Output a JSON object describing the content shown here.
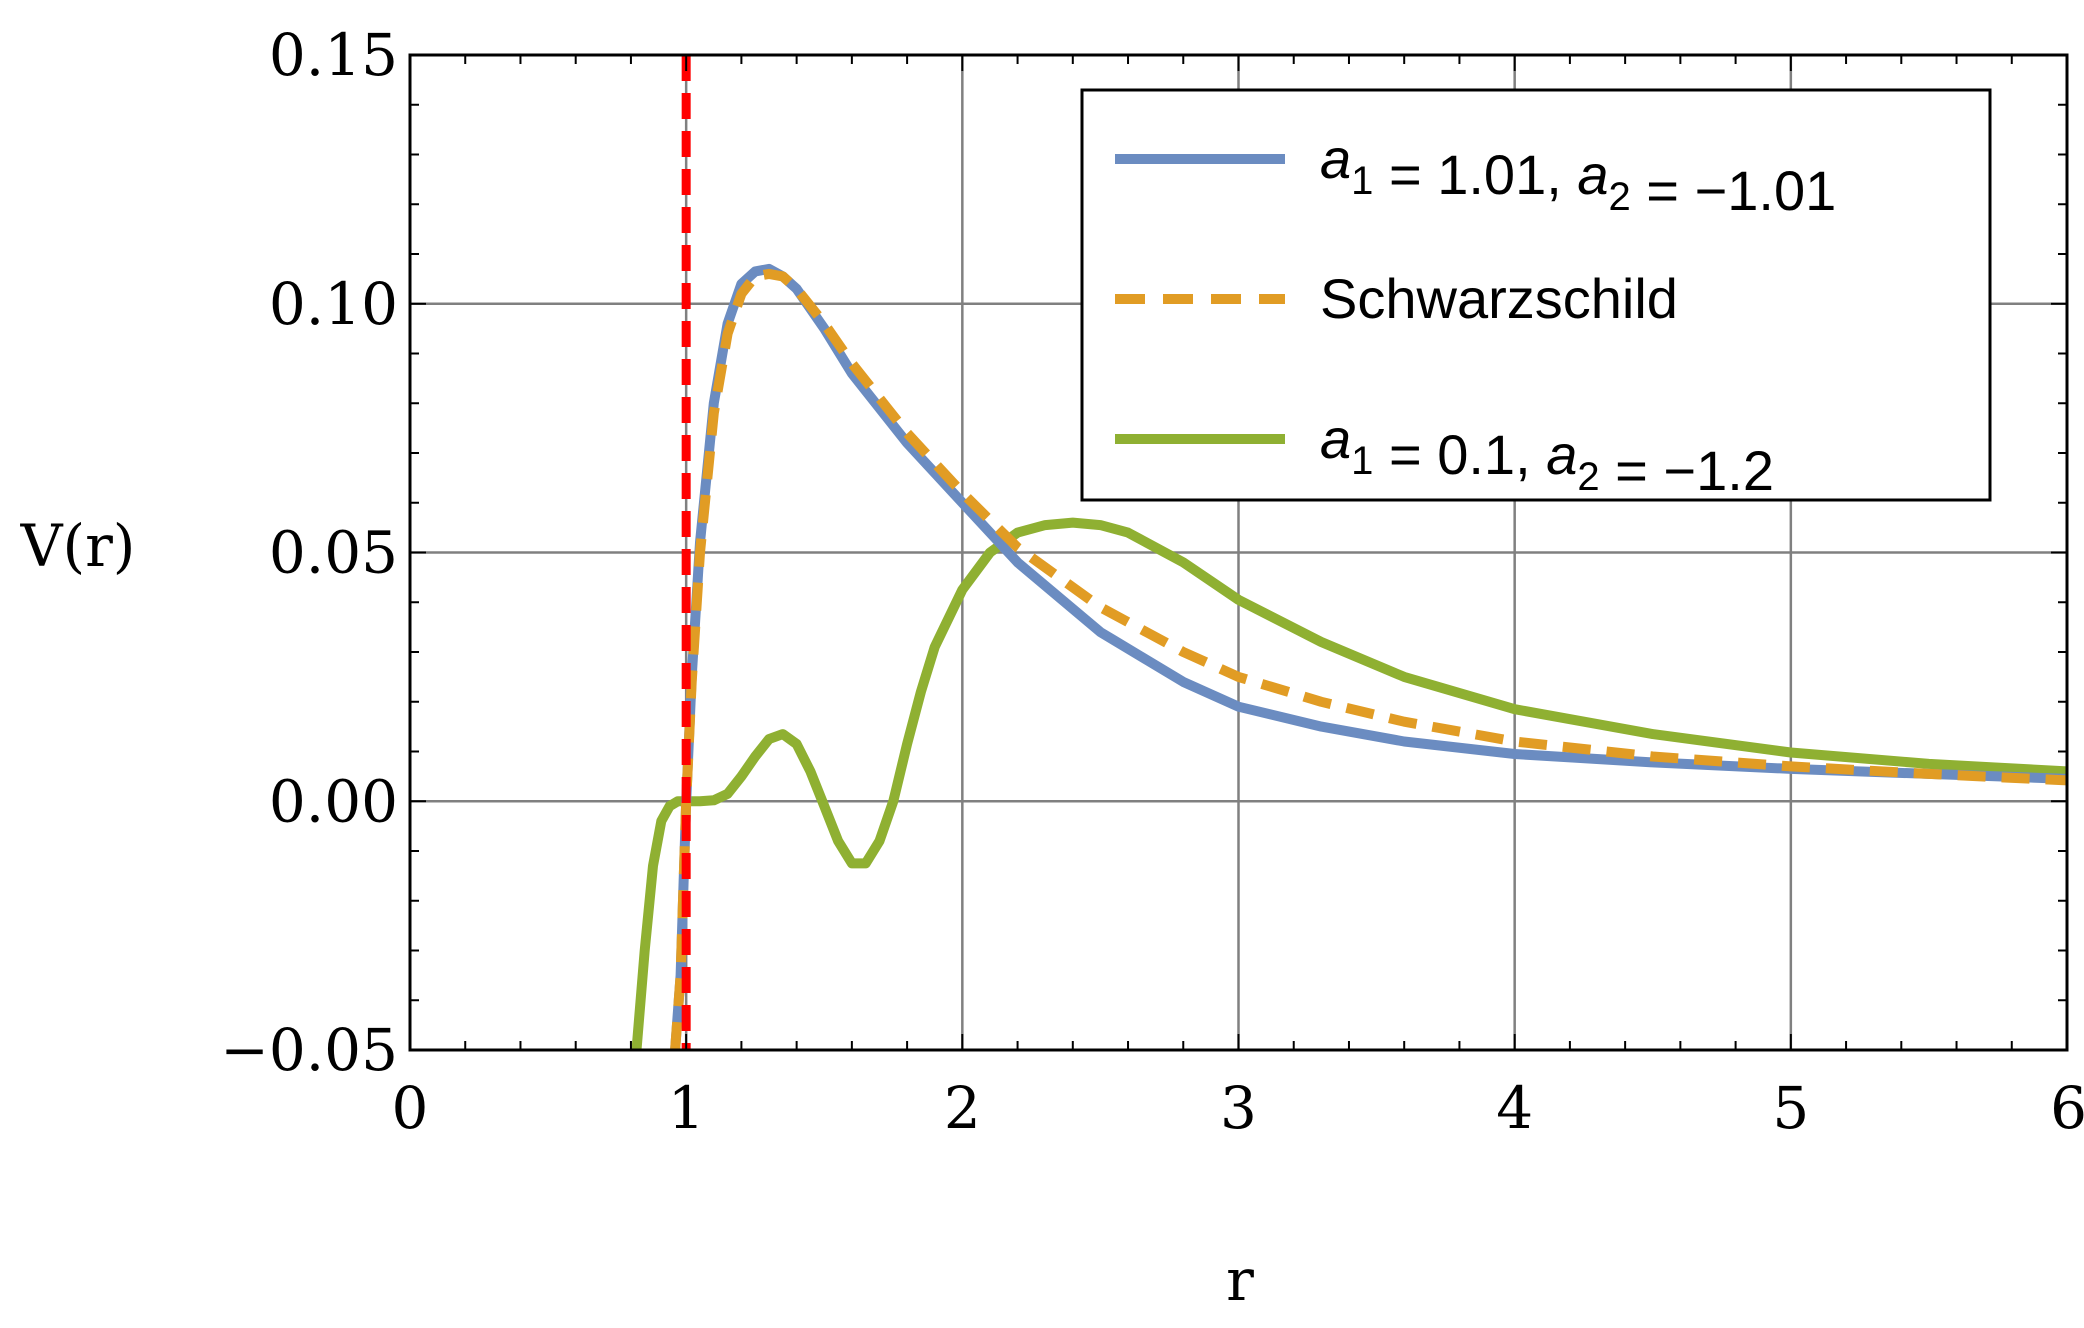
{
  "chart_data": {
    "type": "line",
    "xlabel": "r",
    "ylabel": "V(r)",
    "xlim": [
      0,
      6
    ],
    "ylim": [
      -0.05,
      0.15
    ],
    "grid": true,
    "legend_position": "top-right",
    "x_ticks": [
      "0",
      "1",
      "2",
      "3",
      "4",
      "5",
      "6"
    ],
    "y_ticks": [
      "−0.05",
      "0.00",
      "0.05",
      "0.10",
      "0.15"
    ],
    "x_tick_values": [
      0,
      1,
      2,
      3,
      4,
      5,
      6
    ],
    "y_tick_values": [
      -0.05,
      0,
      0.05,
      0.1,
      0.15
    ],
    "vertical_marker": {
      "x": 1.0,
      "color": "#ff0000",
      "style": "dashed"
    },
    "series": [
      {
        "name": "a1 = 1.01, a2 = −1.01",
        "legend_parts": [
          {
            "t": "a",
            "italic": true
          },
          {
            "t": "1",
            "sub": true
          },
          {
            "t": " = 1.01, "
          },
          {
            "t": "a",
            "italic": true
          },
          {
            "t": "2",
            "sub": true
          },
          {
            "t": " = −1.01"
          }
        ],
        "color": "#6b8cc1",
        "style": "solid",
        "x": [
          0.96,
          0.98,
          1.0,
          1.02,
          1.05,
          1.1,
          1.15,
          1.2,
          1.25,
          1.3,
          1.35,
          1.4,
          1.5,
          1.6,
          1.8,
          2.0,
          2.2,
          2.5,
          2.8,
          3.0,
          3.3,
          3.6,
          4.0,
          4.5,
          5.0,
          5.5,
          6.0
        ],
        "y": [
          -0.05,
          -0.035,
          0.0,
          0.025,
          0.052,
          0.08,
          0.096,
          0.104,
          0.1065,
          0.107,
          0.1055,
          0.103,
          0.095,
          0.086,
          0.072,
          0.06,
          0.048,
          0.034,
          0.024,
          0.019,
          0.015,
          0.012,
          0.0095,
          0.0078,
          0.0065,
          0.0055,
          0.0045
        ]
      },
      {
        "name": "Schwarzschild",
        "legend_parts": [
          {
            "t": "Schwarzschild"
          }
        ],
        "color": "#e19c24",
        "style": "dashed",
        "x": [
          0.96,
          0.98,
          1.0,
          1.02,
          1.05,
          1.1,
          1.15,
          1.2,
          1.25,
          1.3,
          1.35,
          1.4,
          1.5,
          1.6,
          1.8,
          2.0,
          2.2,
          2.5,
          2.8,
          3.0,
          3.3,
          3.6,
          4.0,
          4.5,
          5.0,
          5.5,
          6.0
        ],
        "y": [
          -0.05,
          -0.035,
          0.0,
          0.024,
          0.05,
          0.078,
          0.094,
          0.102,
          0.1055,
          0.106,
          0.1055,
          0.103,
          0.096,
          0.088,
          0.074,
          0.062,
          0.051,
          0.039,
          0.03,
          0.025,
          0.02,
          0.016,
          0.012,
          0.009,
          0.007,
          0.0055,
          0.0042
        ]
      },
      {
        "name": "a1 = 0.1, a2 = −1.2",
        "legend_parts": [
          {
            "t": "a",
            "italic": true
          },
          {
            "t": "1",
            "sub": true
          },
          {
            "t": " = 0.1, "
          },
          {
            "t": "a",
            "italic": true
          },
          {
            "t": "2",
            "sub": true
          },
          {
            "t": " = −1.2"
          }
        ],
        "color": "#8fb032",
        "style": "solid",
        "x": [
          0.82,
          0.85,
          0.88,
          0.91,
          0.94,
          0.97,
          1.0,
          1.05,
          1.1,
          1.15,
          1.2,
          1.25,
          1.3,
          1.35,
          1.4,
          1.45,
          1.5,
          1.55,
          1.6,
          1.65,
          1.7,
          1.75,
          1.8,
          1.85,
          1.9,
          2.0,
          2.1,
          2.2,
          2.3,
          2.4,
          2.5,
          2.6,
          2.8,
          3.0,
          3.3,
          3.6,
          4.0,
          4.5,
          5.0,
          5.5,
          6.0
        ],
        "y": [
          -0.05,
          -0.03,
          -0.013,
          -0.004,
          -0.001,
          0.0,
          0.0,
          0.0,
          0.0002,
          0.0015,
          0.005,
          0.009,
          0.0125,
          0.0135,
          0.0115,
          0.006,
          -0.001,
          -0.008,
          -0.0125,
          -0.0125,
          -0.008,
          0.0,
          0.0115,
          0.022,
          0.031,
          0.0425,
          0.05,
          0.054,
          0.0555,
          0.056,
          0.0555,
          0.054,
          0.048,
          0.0405,
          0.032,
          0.025,
          0.0185,
          0.0135,
          0.0098,
          0.0075,
          0.006
        ]
      }
    ]
  }
}
